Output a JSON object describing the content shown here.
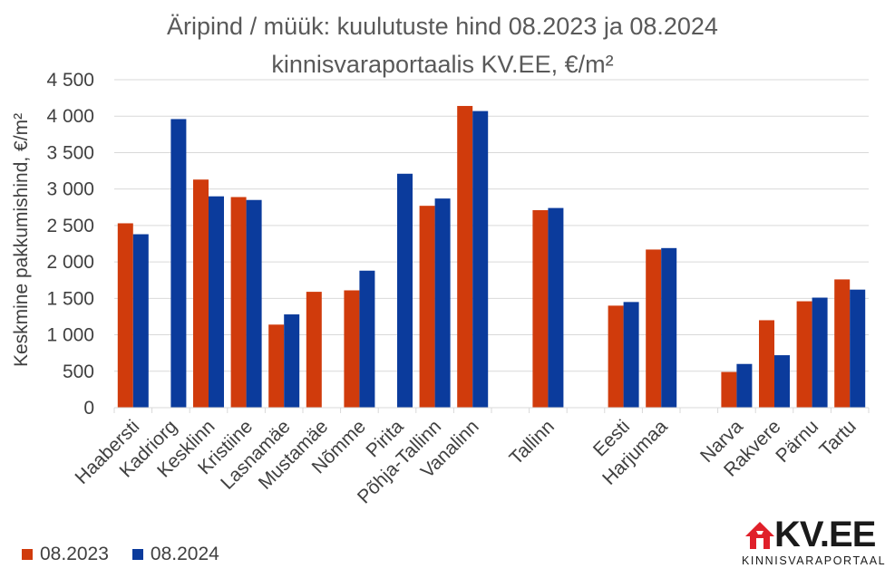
{
  "chart_data": {
    "type": "bar",
    "title_line1": "Äripind / müük: kuulutuste hind 08.2023 ja 08.2024",
    "title_line2": "kinnisvaraportaalis KV.EE, €/m²",
    "ylabel": "Keskmine pakkumishind, €/m²",
    "ylim": [
      0,
      4500
    ],
    "yticks": [
      0,
      500,
      1000,
      1500,
      2000,
      2500,
      3000,
      3500,
      4000,
      4500
    ],
    "ytick_labels": [
      "0",
      "500",
      "1 000",
      "1 500",
      "2 000",
      "2 500",
      "3 000",
      "3 500",
      "4 000",
      "4 500"
    ],
    "grid": true,
    "legend_position": "bottom-left",
    "categories": [
      "Haabersti",
      "Kadriorg",
      "Kesklinn",
      "Kristiine",
      "Lasnamäe",
      "Mustamäe",
      "Nõmme",
      "Pirita",
      "Põhja-Tallinn",
      "Vanalinn",
      "",
      "Tallinn",
      "",
      "Eesti",
      "Harjumaa",
      "",
      "Narva",
      "Rakvere",
      "Pärnu",
      "Tartu"
    ],
    "series": [
      {
        "name": "08.2023",
        "color": "#d03b0c",
        "values": [
          2530,
          null,
          3130,
          2890,
          1140,
          1590,
          1610,
          null,
          2770,
          4140,
          null,
          2710,
          null,
          1400,
          2170,
          null,
          490,
          1200,
          1460,
          1760
        ]
      },
      {
        "name": "08.2024",
        "color": "#0b3b9c",
        "values": [
          2380,
          3960,
          2900,
          2850,
          1280,
          null,
          1880,
          3210,
          2870,
          4070,
          null,
          2740,
          null,
          1450,
          2190,
          null,
          600,
          720,
          1510,
          1620
        ]
      }
    ]
  },
  "logo": {
    "name": "KV.EE",
    "subtitle": "KINNISVARAPORTAAL",
    "icon": "house-arrow-icon",
    "color": "#e0202a"
  }
}
